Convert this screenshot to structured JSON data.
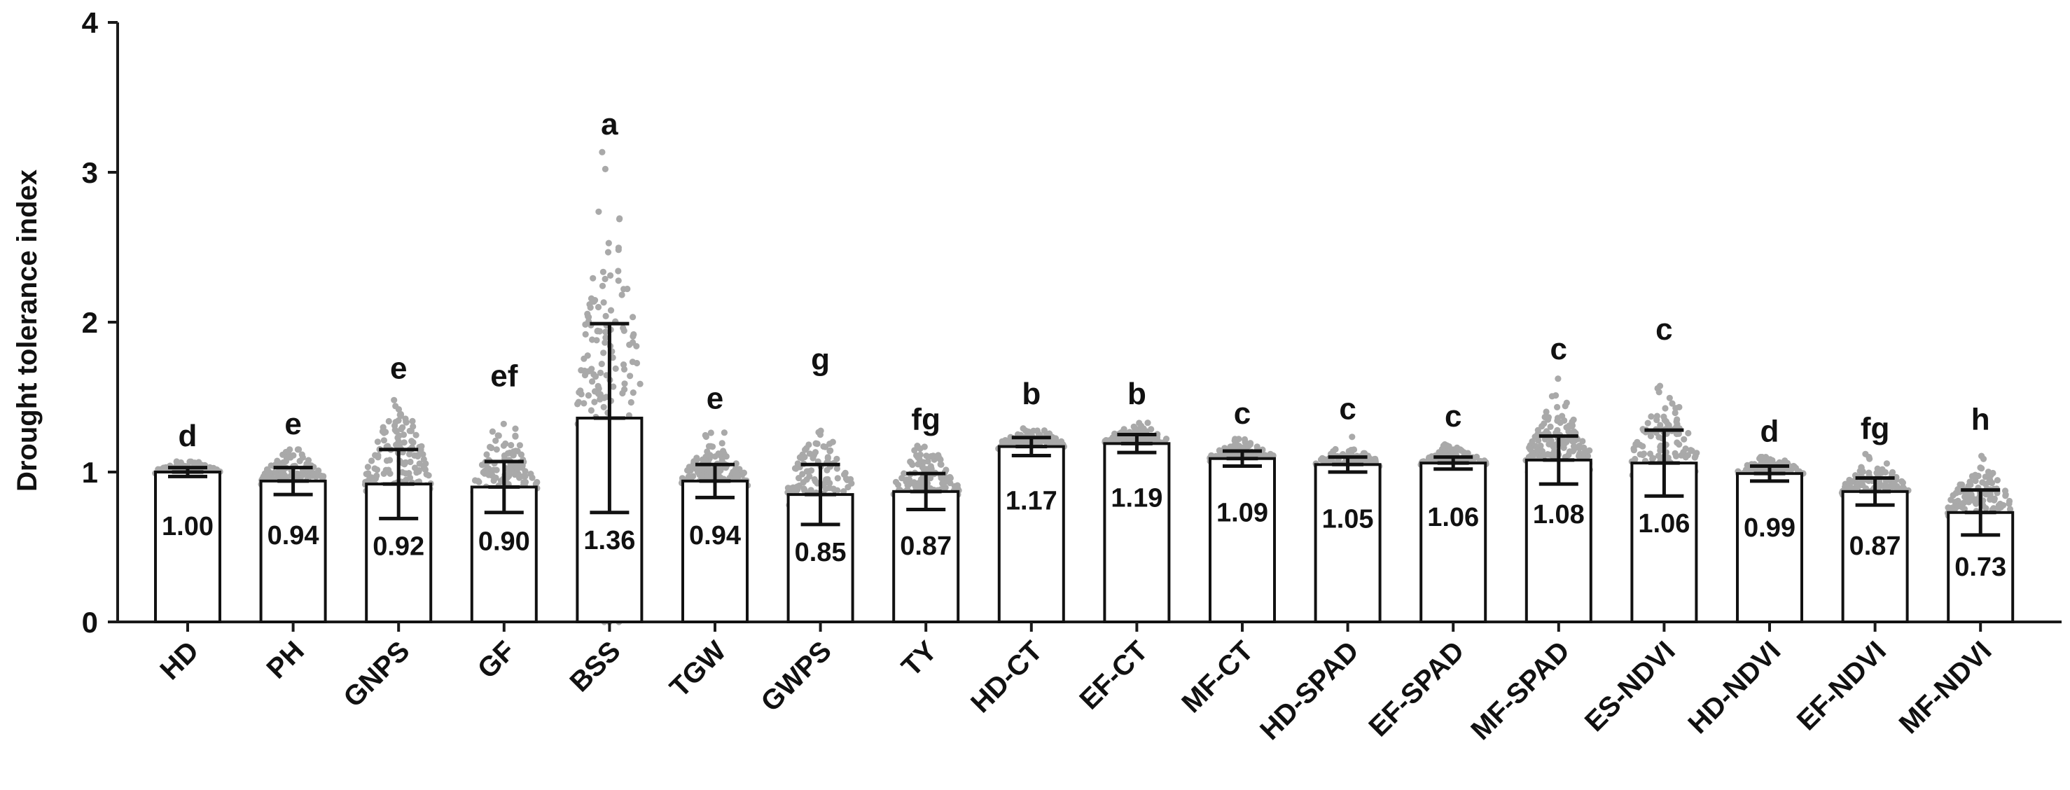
{
  "chart_data": {
    "type": "bar",
    "ylabel": "Drought tolerance index",
    "xlabel": "",
    "ylim": [
      0,
      4
    ],
    "yticks": [
      0,
      1,
      2,
      3,
      4
    ],
    "grid": false,
    "categories": [
      "HD",
      "PH",
      "GNPS",
      "GF",
      "BSS",
      "TGW",
      "GWPS",
      "TY",
      "HD-CT",
      "EF-CT",
      "MF-CT",
      "HD-SPAD",
      "EF-SPAD",
      "MF-SPAD",
      "ES-NDVI",
      "HD-NDVI",
      "EF-NDVI",
      "MF-NDVI"
    ],
    "means": [
      1.0,
      0.94,
      0.92,
      0.9,
      1.36,
      0.94,
      0.85,
      0.87,
      1.17,
      1.19,
      1.09,
      1.05,
      1.06,
      1.08,
      1.06,
      0.99,
      0.87,
      0.73
    ],
    "value_labels": [
      "1.00",
      "0.94",
      "0.92",
      "0.90",
      "1.36",
      "0.94",
      "0.85",
      "0.87",
      "1.17",
      "1.19",
      "1.09",
      "1.05",
      "1.06",
      "1.08",
      "1.06",
      "0.99",
      "0.87",
      "0.73"
    ],
    "sd": [
      0.03,
      0.09,
      0.23,
      0.17,
      0.63,
      0.11,
      0.2,
      0.12,
      0.06,
      0.06,
      0.05,
      0.05,
      0.04,
      0.16,
      0.22,
      0.05,
      0.09,
      0.15
    ],
    "point_range": [
      [
        0.93,
        1.07
      ],
      [
        0.75,
        1.15
      ],
      [
        0.55,
        1.52
      ],
      [
        0.55,
        1.47
      ],
      [
        0.0,
        3.15
      ],
      [
        0.72,
        1.32
      ],
      [
        0.45,
        1.58
      ],
      [
        0.62,
        1.18
      ],
      [
        1.0,
        1.35
      ],
      [
        1.02,
        1.35
      ],
      [
        0.95,
        1.22
      ],
      [
        0.92,
        1.25
      ],
      [
        0.95,
        1.2
      ],
      [
        0.8,
        1.65
      ],
      [
        0.62,
        1.78
      ],
      [
        0.85,
        1.1
      ],
      [
        0.7,
        1.12
      ],
      [
        0.42,
        1.18
      ]
    ],
    "significance_letters": [
      "d",
      "e",
      "e",
      "ef",
      "a",
      "e",
      "g",
      "fg",
      "b",
      "b",
      "c",
      "c",
      "c",
      "c",
      "c",
      "d",
      "fg",
      "h"
    ],
    "point_color": "#a9a9a9",
    "bar_fill": "#ffffff",
    "bar_stroke": "#111111"
  }
}
